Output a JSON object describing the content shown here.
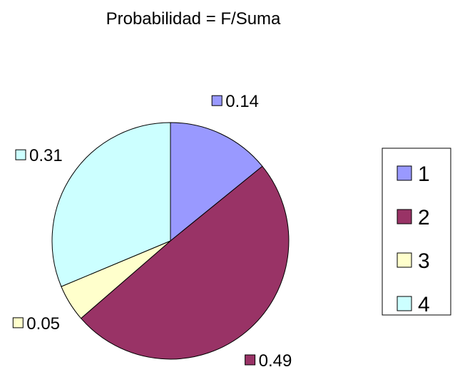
{
  "chart_data": {
    "type": "pie",
    "title": "Probabilidad = F/Suma",
    "categories": [
      "1",
      "2",
      "3",
      "4"
    ],
    "values": [
      0.14,
      0.49,
      0.05,
      0.31
    ],
    "labels": [
      "0.14",
      "0.49",
      "0.05",
      "0.31"
    ],
    "colors": [
      "#9999ff",
      "#993366",
      "#ffffcc",
      "#ccffff"
    ],
    "legend_position": "right",
    "start_angle_deg": 0,
    "direction": "clockwise"
  }
}
